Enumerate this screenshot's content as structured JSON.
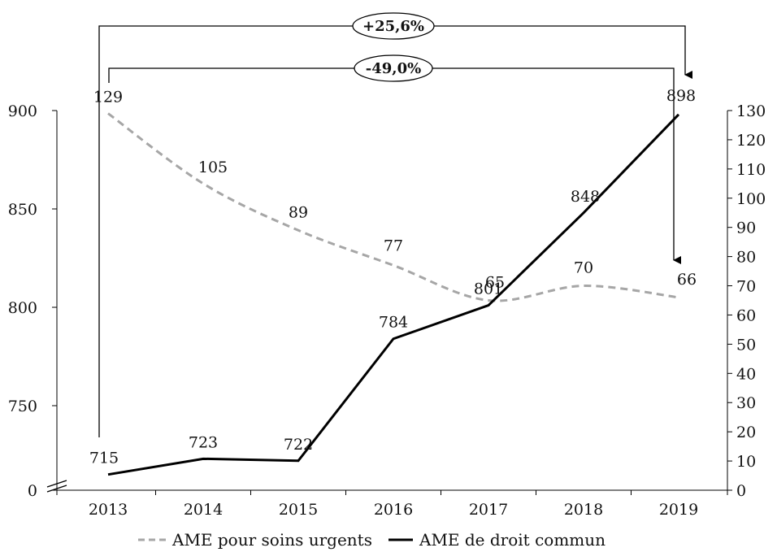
{
  "chart_data": {
    "type": "line",
    "categories": [
      "2013",
      "2014",
      "2015",
      "2016",
      "2017",
      "2018",
      "2019"
    ],
    "series": [
      {
        "name": "AME pour soins urgents",
        "axis": "right",
        "style": "dashed",
        "color": "#a6a6a6",
        "values": [
          129,
          105,
          89,
          77,
          65,
          70,
          66
        ],
        "labels": [
          "129",
          "105",
          "89",
          "77",
          "65",
          "70",
          "66"
        ]
      },
      {
        "name": "AME de droit commun",
        "axis": "left",
        "style": "solid",
        "color": "#000000",
        "values": [
          715,
          723,
          722,
          784,
          801,
          848,
          898
        ],
        "labels": [
          "715",
          "723",
          "722",
          "784",
          "801",
          "848",
          "898"
        ]
      }
    ],
    "y_left": {
      "ticks": [
        "0",
        "750",
        "800",
        "850",
        "900"
      ],
      "broken_axis": true
    },
    "y_right": {
      "ylim": [
        0,
        130
      ],
      "ticks": [
        "0",
        "10",
        "20",
        "30",
        "40",
        "50",
        "60",
        "70",
        "80",
        "90",
        "100",
        "110",
        "120",
        "130"
      ]
    },
    "annotations": [
      {
        "label": "+25,6%",
        "series": "AME de droit commun",
        "from": "2013",
        "to": "2019"
      },
      {
        "label": "-49,0%",
        "series": "AME pour soins urgents",
        "from": "2013",
        "to": "2019"
      }
    ],
    "legend_position": "bottom",
    "grid": false
  }
}
